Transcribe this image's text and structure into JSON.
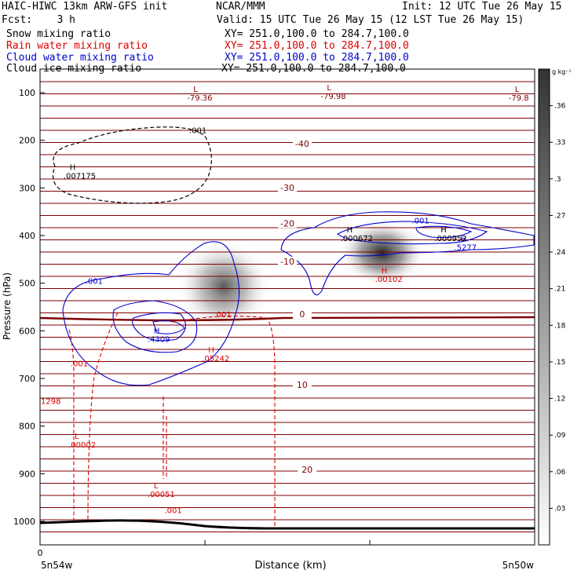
{
  "header": {
    "model": "HAIC-HIWC 13km ARW-GFS init",
    "org": "NCAR/MMM",
    "init": "Init: 12 UTC Tue 26 May 15",
    "fcst": "Fcst:    3 h",
    "valid": "Valid: 15 UTC Tue 26 May 15 (12 LST Tue 26 May 15)"
  },
  "fields": [
    {
      "name": "Snow mixing ratio",
      "xy": "XY= 251.0,100.0 to 284.7,100.0",
      "color": "#000000"
    },
    {
      "name": "Rain water mixing ratio",
      "xy": "XY= 251.0,100.0 to 284.7,100.0",
      "color": "#dd0000"
    },
    {
      "name": "Cloud water mixing ratio",
      "xy": "XY= 251.0,100.0 to 284.7,100.0",
      "color": "#0000cc"
    },
    {
      "name": "Cloud ice mixing ratio",
      "xy": "XY= 251.0,100.0 to 284.7,100.0",
      "color": "#000000"
    }
  ],
  "chart_data": {
    "type": "heatmap",
    "ylabel": "Pressure (hPa)",
    "xlabel": "Distance (km)",
    "y_ticks": [
      100,
      200,
      300,
      400,
      500,
      600,
      700,
      800,
      900,
      1000
    ],
    "x_tick_label": "0",
    "x_endpoints": [
      "5n54w",
      "5n50w"
    ],
    "colorbar": {
      "unit": "g kg⁻¹",
      "ticks": [
        ".03",
        ".06",
        ".09",
        ".12",
        ".15",
        ".18",
        ".21",
        ".24",
        ".27",
        ".3",
        ".33",
        ".36"
      ],
      "values": [
        0.03,
        0.06,
        0.09,
        0.12,
        0.15,
        0.18,
        0.21,
        0.24,
        0.27,
        0.3,
        0.33,
        0.36
      ]
    },
    "temperature_labels": [
      {
        "text": "-40",
        "x": 0.53,
        "p": 212
      },
      {
        "text": "-30",
        "x": 0.5,
        "p": 304
      },
      {
        "text": "-20",
        "x": 0.5,
        "p": 379
      },
      {
        "text": "-10",
        "x": 0.5,
        "p": 459
      },
      {
        "text": "0",
        "x": 0.53,
        "p": 570
      },
      {
        "text": "10",
        "x": 0.53,
        "p": 718
      },
      {
        "text": "20",
        "x": 0.54,
        "p": 896
      }
    ],
    "extrema": [
      {
        "mark": "L",
        "value": "-79.36",
        "x": 0.31,
        "p": 98,
        "color": "#800000"
      },
      {
        "mark": "L",
        "value": "-79.98",
        "x": 0.58,
        "p": 95,
        "color": "#800000"
      },
      {
        "mark": "L",
        "value": "-79.8",
        "x": 0.96,
        "p": 98,
        "color": "#800000"
      },
      {
        "mark": "H",
        "value": ".007175",
        "x": 0.06,
        "p": 262,
        "color": "#000000"
      },
      {
        "mark": "H",
        "value": ".000672",
        "x": 0.62,
        "p": 393,
        "color": "#000000"
      },
      {
        "mark": "H",
        "value": ".000952",
        "x": 0.81,
        "p": 393,
        "color": "#000000"
      },
      {
        "mark": "H",
        "value": ".5277",
        "x": 0.85,
        "p": 412,
        "color": "#0000cc"
      },
      {
        "mark": "H",
        "value": ".4309",
        "x": 0.23,
        "p": 605,
        "color": "#0000cc"
      },
      {
        "mark": "H",
        "value": ".00102",
        "x": 0.69,
        "p": 479,
        "color": "#dd0000"
      },
      {
        "mark": "H",
        "value": ".05242",
        "x": 0.34,
        "p": 646,
        "color": "#dd0000"
      },
      {
        "mark": "L",
        "value": ".00002",
        "x": 0.07,
        "p": 827,
        "color": "#dd0000"
      },
      {
        "mark": "L",
        "value": ".00051",
        "x": 0.23,
        "p": 931,
        "color": "#dd0000"
      }
    ],
    "contour_labels": [
      {
        "text": ".001",
        "x": 0.3,
        "p": 178,
        "color": "#000000"
      },
      {
        "text": ".001",
        "x": 0.75,
        "p": 368,
        "color": "#0000cc"
      },
      {
        "text": ".001",
        "x": 0.09,
        "p": 495,
        "color": "#0000cc"
      },
      {
        "text": ".001",
        "x": 0.35,
        "p": 565,
        "color": "#dd0000"
      },
      {
        "text": ".001",
        "x": 0.06,
        "p": 668,
        "color": "#dd0000"
      },
      {
        "text": ".001",
        "x": 0.25,
        "p": 976,
        "color": "#dd0000"
      },
      {
        "text": "1298",
        "x": 0.0,
        "p": 747,
        "color": "#dd0000"
      }
    ]
  }
}
